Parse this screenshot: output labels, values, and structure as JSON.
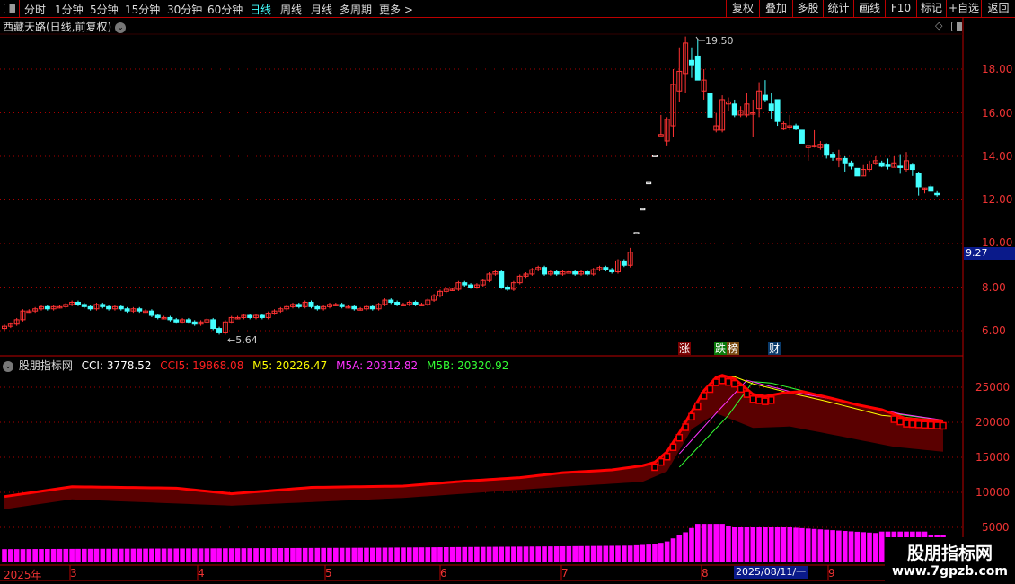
{
  "toolbar": {
    "periods": [
      "分时",
      "1分钟",
      "5分钟",
      "15分钟",
      "30分钟",
      "60分钟",
      "日线",
      "周线",
      "月线",
      "多周期",
      "更多 >"
    ],
    "active_period": "日线",
    "buttons": [
      "复权",
      "叠加",
      "多股",
      "统计",
      "画线",
      "F10",
      "标记",
      "+自选",
      "返回"
    ]
  },
  "chart_title": "西藏天路(日线,前复权)",
  "price_axis": [
    "18.00",
    "16.00",
    "14.00",
    "12.00",
    "10.00",
    "8.00",
    "6.00"
  ],
  "current_price": "9.27",
  "annotations": {
    "high": "19.50",
    "low": "5.64"
  },
  "event_markers": [
    {
      "label": "涨",
      "color": "#7a0000"
    },
    {
      "label": "跌",
      "color": "#0a7a0a"
    },
    {
      "label": "榜",
      "color": "#7a4a10"
    },
    {
      "label": "财",
      "color": "#0a3a6a"
    }
  ],
  "indicator": {
    "name": "股朋指标网",
    "cci": "CCI: 3778.52",
    "cci5": "CCI5: 19868.08",
    "m5": "M5: 20226.47",
    "m5a": "M5A: 20312.82",
    "m5b": "M5B: 20320.92",
    "axis": [
      "25000",
      "20000",
      "15000",
      "10000",
      "5000"
    ]
  },
  "date_axis": {
    "labels": [
      "2025年",
      "3",
      "4",
      "5",
      "6",
      "7",
      "8",
      "9"
    ],
    "cursor_date": "2025/08/11/一"
  },
  "watermark": {
    "line1": "股朋指标网",
    "line2": "www.7gpzb.com"
  },
  "colors": {
    "up": "#ff3333",
    "down": "#44ffff",
    "cci": "#ff0000",
    "band": "#5a0000",
    "m5": "#ffff00",
    "m5a": "#ff33ff",
    "m5b": "#33ff33",
    "hist": "#ff00ff"
  },
  "chart_data": {
    "type": "candlestick",
    "price_range": [
      5.3,
      19.9
    ],
    "early_closes": [
      6.2,
      6.3,
      6.5,
      6.9,
      6.9,
      7.0,
      7.1,
      7.0,
      7.1,
      7.1,
      7.2,
      7.3,
      7.2,
      7.1,
      7.0,
      7.2,
      7.1,
      7.0,
      7.1,
      7.0,
      6.9,
      7.0,
      6.9,
      6.9,
      6.7,
      6.6,
      6.6,
      6.5,
      6.4,
      6.5,
      6.4,
      6.3,
      6.4,
      6.5,
      6.1,
      5.9,
      6.4,
      6.6,
      6.6,
      6.7,
      6.6,
      6.7,
      6.6,
      6.8,
      6.9,
      7.0,
      7.1,
      7.2,
      7.1,
      7.3,
      7.1,
      7.0,
      7.1,
      7.2,
      7.2,
      7.1,
      7.1,
      7.0,
      7.0,
      7.1,
      7.0,
      7.2,
      7.4,
      7.3,
      7.2,
      7.2,
      7.3,
      7.2,
      7.2,
      7.4,
      7.6,
      7.8,
      7.9,
      7.9,
      8.2,
      8.1,
      8.0,
      8.1,
      8.3,
      8.6,
      8.7,
      8.0,
      7.9,
      8.2,
      8.5,
      8.6,
      8.8,
      8.9,
      8.6,
      8.7,
      8.6,
      8.7,
      8.7,
      8.6,
      8.7,
      8.6,
      8.8,
      8.9,
      8.8,
      8.7,
      9.2,
      9.0
    ],
    "late_ohlc_ocHL": [
      [
        9.0,
        9.6,
        9.8,
        8.9
      ],
      [
        10.5,
        10.5,
        10.5,
        10.5
      ],
      [
        11.6,
        11.6,
        11.6,
        11.6
      ],
      [
        12.8,
        12.8,
        12.8,
        12.8
      ],
      [
        14.05,
        14.05,
        14.05,
        14.05
      ],
      [
        15.0,
        15.0,
        15.9,
        15.0
      ],
      [
        14.7,
        15.7,
        15.8,
        14.5
      ],
      [
        15.4,
        17.3,
        18.0,
        14.9
      ],
      [
        17.0,
        17.9,
        19.0,
        16.5
      ],
      [
        17.8,
        19.2,
        19.5,
        16.9
      ],
      [
        18.4,
        18.2,
        19.0,
        17.6
      ],
      [
        18.6,
        17.5,
        19.4,
        17.5
      ],
      [
        17.0,
        17.5,
        18.0,
        16.6
      ],
      [
        16.9,
        15.8,
        16.9,
        15.8
      ],
      [
        15.2,
        15.4,
        16.0,
        15.1
      ],
      [
        15.2,
        16.6,
        16.8,
        15.1
      ],
      [
        16.4,
        16.5,
        16.7,
        16.1
      ],
      [
        16.4,
        15.9,
        16.6,
        15.8
      ],
      [
        15.9,
        16.1,
        16.3,
        15.8
      ],
      [
        15.9,
        16.4,
        16.9,
        15.8
      ],
      [
        16.0,
        16.0,
        16.6,
        14.9
      ],
      [
        16.2,
        17.0,
        17.4,
        15.8
      ],
      [
        16.8,
        16.6,
        17.5,
        16.5
      ],
      [
        16.4,
        16.1,
        16.9,
        15.7
      ],
      [
        16.6,
        15.6,
        16.6,
        15.4
      ],
      [
        15.25,
        15.5,
        15.6,
        15.2
      ],
      [
        15.4,
        15.4,
        15.9,
        15.2
      ],
      [
        15.4,
        15.25,
        15.5,
        15.2
      ],
      [
        15.2,
        14.6,
        15.2,
        14.6
      ],
      [
        14.4,
        14.5,
        14.5,
        13.8
      ],
      [
        14.5,
        14.5,
        15.2,
        14.4
      ],
      [
        14.4,
        14.55,
        14.7,
        14.3
      ],
      [
        14.55,
        14.05,
        14.6,
        13.9
      ],
      [
        14.1,
        13.95,
        14.2,
        13.8
      ],
      [
        13.85,
        13.9,
        14.3,
        13.5
      ],
      [
        13.9,
        13.7,
        14.0,
        13.3
      ],
      [
        13.7,
        13.55,
        13.8,
        13.4
      ],
      [
        13.45,
        13.1,
        13.45,
        13.1
      ],
      [
        13.1,
        13.4,
        13.6,
        13.1
      ],
      [
        13.4,
        13.65,
        13.8,
        13.3
      ],
      [
        13.7,
        13.8,
        14.0,
        13.6
      ],
      [
        13.7,
        13.55,
        13.8,
        13.5
      ],
      [
        13.6,
        13.55,
        13.9,
        13.4
      ],
      [
        13.5,
        13.7,
        14.0,
        13.5
      ],
      [
        13.55,
        13.5,
        14.1,
        13.2
      ],
      [
        13.4,
        13.8,
        14.2,
        13.3
      ],
      [
        13.6,
        13.4,
        13.7,
        13.1
      ],
      [
        13.2,
        12.6,
        13.3,
        12.2
      ],
      [
        12.55,
        12.55,
        12.55,
        12.3
      ],
      [
        12.6,
        12.4,
        12.7,
        12.4
      ],
      [
        12.3,
        12.25,
        12.4,
        12.15
      ]
    ],
    "indicator_range": [
      0,
      28500
    ],
    "cci5_points": [
      [
        0,
        9400
      ],
      [
        11,
        10800
      ],
      [
        28,
        10600
      ],
      [
        37,
        9800
      ],
      [
        50,
        10700
      ],
      [
        65,
        10900
      ],
      [
        75,
        11600
      ],
      [
        84,
        12100
      ],
      [
        91,
        12800
      ],
      [
        99,
        13200
      ],
      [
        104,
        13800
      ],
      [
        106,
        14300
      ],
      [
        108,
        15800
      ],
      [
        110,
        18500
      ],
      [
        112,
        21500
      ],
      [
        114,
        24500
      ],
      [
        116,
        26400
      ],
      [
        117,
        26700
      ],
      [
        119,
        26200
      ],
      [
        122,
        24000
      ],
      [
        124,
        23700
      ],
      [
        127,
        24200
      ],
      [
        130,
        24400
      ],
      [
        134,
        23600
      ],
      [
        139,
        22500
      ],
      [
        143,
        21800
      ],
      [
        147,
        20500
      ],
      [
        153,
        20200
      ]
    ],
    "band_low_points": [
      [
        0,
        7600
      ],
      [
        11,
        9000
      ],
      [
        37,
        8100
      ],
      [
        65,
        9200
      ],
      [
        91,
        10800
      ],
      [
        104,
        11500
      ],
      [
        108,
        13000
      ],
      [
        112,
        19000
      ],
      [
        116,
        21300
      ],
      [
        122,
        19200
      ],
      [
        128,
        19400
      ],
      [
        134,
        18400
      ],
      [
        145,
        16500
      ],
      [
        153,
        15800
      ]
    ],
    "m5_points": [
      [
        117,
        26600
      ],
      [
        119,
        26500
      ],
      [
        122,
        25500
      ],
      [
        128,
        24200
      ],
      [
        134,
        23000
      ],
      [
        143,
        21000
      ],
      [
        153,
        20200
      ]
    ],
    "m5a_points": [
      [
        110,
        15500
      ],
      [
        116,
        21300
      ],
      [
        121,
        26000
      ],
      [
        128,
        24400
      ],
      [
        135,
        23300
      ],
      [
        146,
        21200
      ],
      [
        153,
        20300
      ]
    ],
    "m5b_points": [
      [
        110,
        13600
      ],
      [
        118,
        21000
      ],
      [
        122,
        25800
      ],
      [
        125,
        25600
      ],
      [
        131,
        24300
      ],
      [
        138,
        22800
      ],
      [
        146,
        21100
      ],
      [
        153,
        20300
      ]
    ],
    "hist_points": [
      [
        0,
        1900
      ],
      [
        30,
        2000
      ],
      [
        60,
        2100
      ],
      [
        90,
        2300
      ],
      [
        102,
        2400
      ],
      [
        106,
        2600
      ],
      [
        108,
        3000
      ],
      [
        111,
        4300
      ],
      [
        113,
        5500
      ],
      [
        117,
        5500
      ],
      [
        119,
        5000
      ],
      [
        128,
        5000
      ],
      [
        135,
        4600
      ],
      [
        142,
        4200
      ],
      [
        143,
        4400
      ],
      [
        150,
        4400
      ],
      [
        151,
        3900
      ],
      [
        153,
        3900
      ]
    ]
  }
}
